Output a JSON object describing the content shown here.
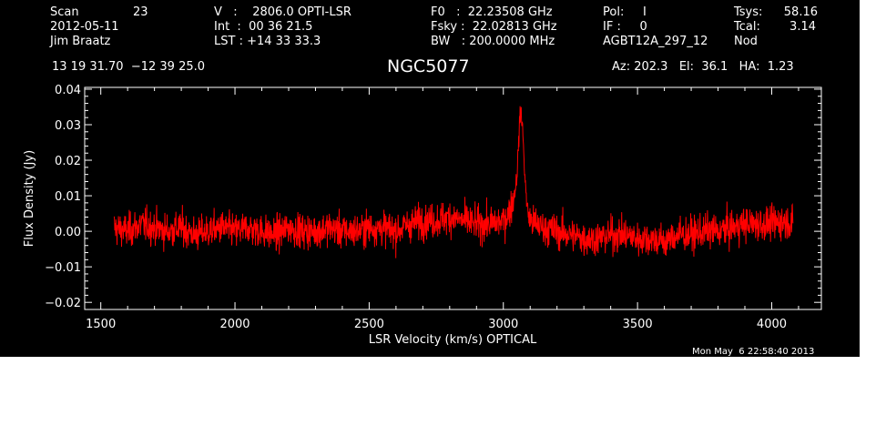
{
  "header": {
    "scan_label": "Scan",
    "scan_number": "23",
    "date": "2012-05-11",
    "observer": "Jim Braatz",
    "velocity": "V   :    2806.0 OPTI-LSR",
    "int_time": "Int  :  00 36 21.5",
    "lst": "LST : +14 33 33.3",
    "f0": "F0   :  22.23508 GHz",
    "fsky": "Fsky :  22.02813 GHz",
    "bw": "BW   : 200.0000 MHz",
    "pol": "Pol:     I",
    "if_num": "IF :     0",
    "project": "AGBT12A_297_12",
    "tsys_label": "Tsys:",
    "tsys_value": "58.16",
    "tcal_label": "Tcal:",
    "tcal_value": "3.14",
    "proc": "Nod",
    "coords": "13 19 31.70  −12 39 25.0",
    "source": "NGC5077",
    "az_el_ha": "Az: 202.3   El:  36.1   HA:  1.23"
  },
  "footer": {
    "timestamp": "Mon May  6 22:58:40 2013"
  },
  "colors": {
    "background": "#000000",
    "axes": "#ffffff",
    "trace": "#ff0000"
  },
  "chart_data": {
    "type": "line",
    "xlabel": "LSR Velocity (km/s) OPTICAL",
    "ylabel": "Flux Density (Jy)",
    "xlim": [
      1440,
      4185
    ],
    "ylim": [
      -0.022,
      0.0405
    ],
    "x_ticks": [
      {
        "value": 1500,
        "label": "1500"
      },
      {
        "value": 2000,
        "label": "2000"
      },
      {
        "value": 2500,
        "label": "2500"
      },
      {
        "value": 3000,
        "label": "3000"
      },
      {
        "value": 3500,
        "label": "3500"
      },
      {
        "value": 4000,
        "label": "4000"
      }
    ],
    "y_ticks": [
      {
        "value": -0.02,
        "label": "−0.02"
      },
      {
        "value": -0.01,
        "label": "−0.01"
      },
      {
        "value": 0.0,
        "label": "0.00"
      },
      {
        "value": 0.01,
        "label": "0.01"
      },
      {
        "value": 0.02,
        "label": "0.02"
      },
      {
        "value": 0.03,
        "label": "0.03"
      },
      {
        "value": 0.04,
        "label": "0.04"
      }
    ],
    "grid": false,
    "series": [
      {
        "color": "#ff0000",
        "x": [
          1550,
          1600,
          1650,
          1700,
          1750,
          1800,
          1850,
          1900,
          1950,
          2000,
          2050,
          2100,
          2150,
          2200,
          2250,
          2300,
          2350,
          2400,
          2450,
          2500,
          2550,
          2600,
          2650,
          2700,
          2750,
          2800,
          2850,
          2900,
          2950,
          3000,
          3020,
          3040,
          3050,
          3055,
          3060,
          3065,
          3070,
          3075,
          3080,
          3085,
          3090,
          3100,
          3120,
          3150,
          3200,
          3250,
          3300,
          3350,
          3400,
          3450,
          3500,
          3550,
          3600,
          3650,
          3700,
          3750,
          3800,
          3850,
          3900,
          3950,
          4000,
          4050,
          4080
        ],
        "y": [
          0.001,
          0.0,
          0.002,
          0.001,
          0.0,
          0.001,
          -0.001,
          0.0,
          0.001,
          0.0,
          0.001,
          0.0,
          -0.001,
          0.001,
          0.0,
          0.0,
          0.001,
          0.0,
          0.0,
          0.001,
          0.001,
          0.0,
          0.002,
          0.003,
          0.003,
          0.004,
          0.003,
          0.002,
          0.002,
          0.003,
          0.005,
          0.01,
          0.015,
          0.022,
          0.03,
          0.034,
          0.031,
          0.024,
          0.016,
          0.01,
          0.006,
          0.003,
          0.002,
          0.001,
          0.0,
          -0.001,
          -0.002,
          -0.002,
          -0.001,
          -0.001,
          -0.002,
          -0.002,
          -0.003,
          -0.001,
          -0.001,
          0.0,
          0.0,
          0.001,
          0.002,
          0.002,
          0.002,
          0.003,
          0.002
        ],
        "noise_rms": 0.0045
      }
    ]
  }
}
